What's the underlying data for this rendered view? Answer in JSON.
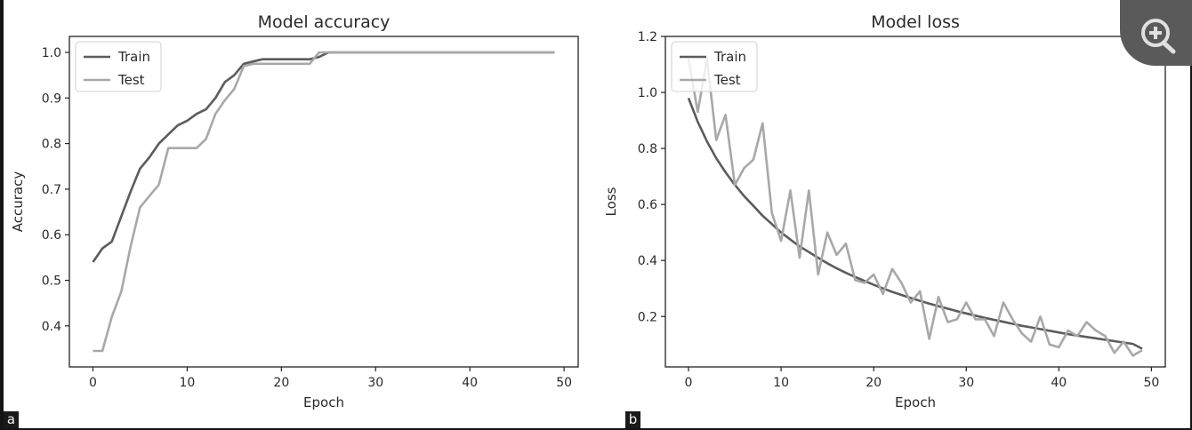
{
  "zoom_button": {
    "icon": "zoom-in-icon"
  },
  "chart_data": [
    {
      "type": "line",
      "panel_label": "a",
      "title": "Model accuracy",
      "xlabel": "Epoch",
      "ylabel": "Accuracy",
      "xlim": [
        -2.5,
        51.5
      ],
      "ylim": [
        0.31,
        1.035
      ],
      "xticks": [
        0,
        10,
        20,
        30,
        40,
        50
      ],
      "yticks": [
        0.4,
        0.5,
        0.6,
        0.7,
        0.8,
        0.9,
        1.0
      ],
      "legend_position": "upper-left",
      "colors": {
        "Train": "#5c5c5c",
        "Test": "#a8a8a8"
      },
      "series": [
        {
          "name": "Train",
          "x": [
            0,
            1,
            2,
            3,
            4,
            5,
            6,
            7,
            8,
            9,
            10,
            11,
            12,
            13,
            14,
            15,
            16,
            17,
            18,
            19,
            20,
            21,
            22,
            23,
            24,
            25,
            26,
            30,
            35,
            40,
            45,
            49
          ],
          "y": [
            0.54,
            0.57,
            0.585,
            0.64,
            0.695,
            0.745,
            0.77,
            0.8,
            0.82,
            0.84,
            0.85,
            0.865,
            0.875,
            0.9,
            0.935,
            0.95,
            0.975,
            0.98,
            0.985,
            0.985,
            0.985,
            0.985,
            0.985,
            0.985,
            0.99,
            1.0,
            1.0,
            1.0,
            1.0,
            1.0,
            1.0,
            1.0
          ]
        },
        {
          "name": "Test",
          "x": [
            0,
            1,
            2,
            3,
            4,
            5,
            6,
            7,
            8,
            9,
            10,
            11,
            12,
            13,
            14,
            15,
            16,
            17,
            18,
            19,
            20,
            21,
            22,
            23,
            24,
            25,
            26,
            30,
            35,
            40,
            45,
            49
          ],
          "y": [
            0.345,
            0.345,
            0.42,
            0.475,
            0.575,
            0.66,
            0.685,
            0.71,
            0.79,
            0.79,
            0.79,
            0.79,
            0.81,
            0.865,
            0.895,
            0.92,
            0.97,
            0.975,
            0.975,
            0.975,
            0.975,
            0.975,
            0.975,
            0.975,
            1.0,
            1.0,
            1.0,
            1.0,
            1.0,
            1.0,
            1.0,
            1.0
          ]
        }
      ]
    },
    {
      "type": "line",
      "panel_label": "b",
      "title": "Model loss",
      "xlabel": "Epoch",
      "ylabel": "Loss",
      "xlim": [
        -2.5,
        51.5
      ],
      "ylim": [
        0.02,
        1.2
      ],
      "xticks": [
        0,
        10,
        20,
        30,
        40,
        50
      ],
      "yticks": [
        0.2,
        0.4,
        0.6,
        0.8,
        1.0,
        1.2
      ],
      "legend_position": "upper-left",
      "colors": {
        "Train": "#5c5c5c",
        "Test": "#a8a8a8"
      },
      "series": [
        {
          "name": "Train",
          "x": [
            0,
            1,
            2,
            3,
            4,
            5,
            6,
            7,
            8,
            9,
            10,
            11,
            12,
            13,
            14,
            15,
            16,
            17,
            18,
            19,
            20,
            21,
            22,
            23,
            24,
            25,
            26,
            27,
            28,
            29,
            30,
            31,
            32,
            33,
            34,
            35,
            36,
            37,
            38,
            39,
            40,
            41,
            42,
            43,
            44,
            45,
            46,
            47,
            48,
            49
          ],
          "y": [
            0.98,
            0.895,
            0.825,
            0.765,
            0.715,
            0.67,
            0.63,
            0.595,
            0.56,
            0.53,
            0.5,
            0.475,
            0.45,
            0.43,
            0.41,
            0.39,
            0.372,
            0.356,
            0.341,
            0.327,
            0.313,
            0.3,
            0.288,
            0.277,
            0.266,
            0.256,
            0.246,
            0.237,
            0.228,
            0.219,
            0.211,
            0.203,
            0.195,
            0.188,
            0.181,
            0.174,
            0.167,
            0.161,
            0.155,
            0.149,
            0.143,
            0.137,
            0.132,
            0.127,
            0.122,
            0.117,
            0.112,
            0.107,
            0.102,
            0.085
          ]
        },
        {
          "name": "Test",
          "x": [
            0,
            1,
            2,
            3,
            4,
            5,
            6,
            7,
            8,
            9,
            10,
            11,
            12,
            13,
            14,
            15,
            16,
            17,
            18,
            19,
            20,
            21,
            22,
            23,
            24,
            25,
            26,
            27,
            28,
            29,
            30,
            31,
            32,
            33,
            34,
            35,
            36,
            37,
            38,
            39,
            40,
            41,
            42,
            43,
            44,
            45,
            46,
            47,
            48,
            49
          ],
          "y": [
            1.12,
            0.93,
            1.12,
            0.83,
            0.92,
            0.67,
            0.73,
            0.76,
            0.89,
            0.57,
            0.47,
            0.65,
            0.41,
            0.65,
            0.35,
            0.5,
            0.42,
            0.46,
            0.33,
            0.32,
            0.35,
            0.28,
            0.37,
            0.32,
            0.25,
            0.29,
            0.12,
            0.27,
            0.18,
            0.19,
            0.25,
            0.19,
            0.19,
            0.13,
            0.25,
            0.19,
            0.14,
            0.11,
            0.2,
            0.1,
            0.09,
            0.15,
            0.13,
            0.18,
            0.15,
            0.13,
            0.07,
            0.11,
            0.06,
            0.08
          ]
        }
      ]
    }
  ]
}
